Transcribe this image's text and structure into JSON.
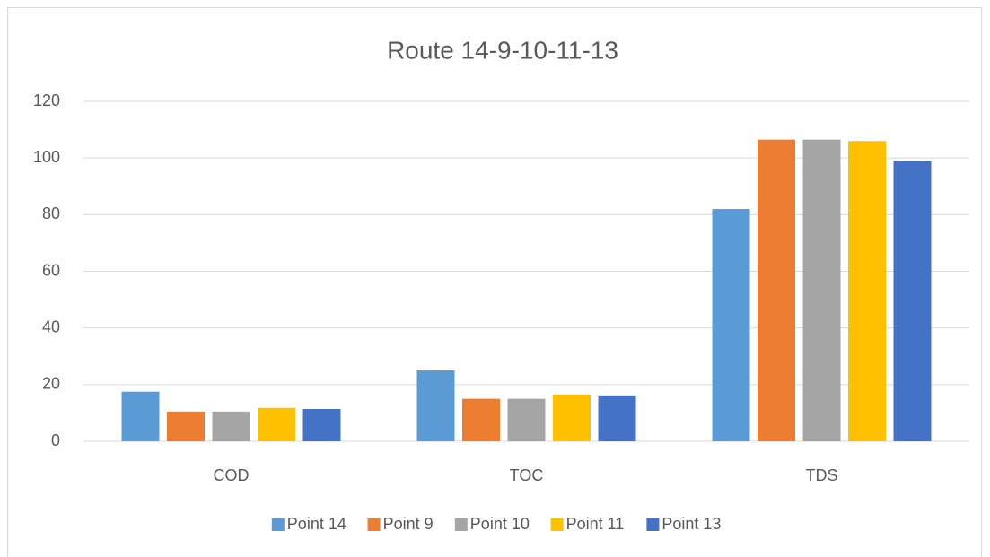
{
  "chart_data": {
    "type": "bar",
    "title": "Route 14-9-10-11-13",
    "categories": [
      "COD",
      "TOC",
      "TDS"
    ],
    "series": [
      {
        "name": "Point 14",
        "color": "#5b9bd5",
        "values": [
          17.5,
          25,
          82
        ]
      },
      {
        "name": "Point 9",
        "color": "#ed7d31",
        "values": [
          10.5,
          15,
          106.5
        ]
      },
      {
        "name": "Point 10",
        "color": "#a5a5a5",
        "values": [
          10.5,
          15,
          106.5
        ]
      },
      {
        "name": "Point 11",
        "color": "#ffc000",
        "values": [
          11.8,
          16.5,
          106
        ]
      },
      {
        "name": "Point 13",
        "color": "#4472c4",
        "values": [
          11.4,
          16.2,
          99
        ]
      }
    ],
    "ylim": [
      0,
      120
    ],
    "yticks": [
      0,
      20,
      40,
      60,
      80,
      100,
      120
    ],
    "grid": true,
    "legend": "bottom"
  }
}
